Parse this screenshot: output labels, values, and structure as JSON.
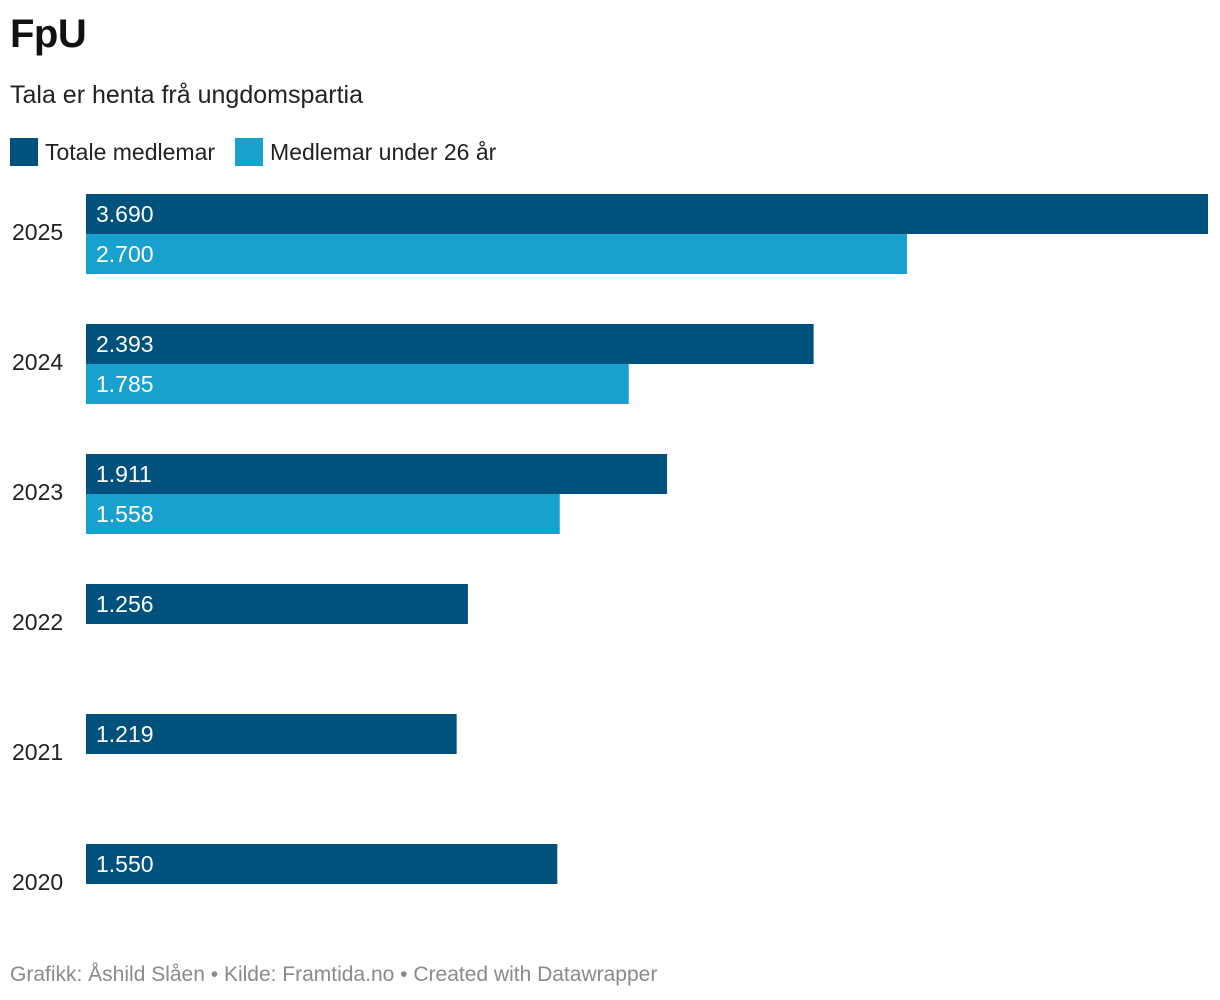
{
  "header": {
    "title": "FpU",
    "subtitle": "Tala er henta frå ungdomspartia"
  },
  "footer": {
    "credit": "Grafikk: Åshild Slåen • Kilde: Framtida.no • Created with Datawrapper"
  },
  "chart_data": {
    "type": "bar",
    "orientation": "horizontal",
    "categories": [
      "2025",
      "2024",
      "2023",
      "2022",
      "2021",
      "2020"
    ],
    "series": [
      {
        "name": "Totale medlemar",
        "color": "#00517c",
        "values": [
          3690,
          2393,
          1911,
          1256,
          1219,
          1550
        ],
        "labels": [
          "3.690",
          "2.393",
          "1.911",
          "1.256",
          "1.219",
          "1.550"
        ]
      },
      {
        "name": "Medlemar under 26 år",
        "color": "#18a1cf",
        "values": [
          2700,
          1785,
          1558,
          null,
          null,
          null
        ],
        "labels": [
          "2.700",
          "1.785",
          "1.558",
          null,
          null,
          null
        ]
      }
    ],
    "xlim": [
      0,
      3690
    ],
    "legend_position": "top-left",
    "grid": false
  }
}
